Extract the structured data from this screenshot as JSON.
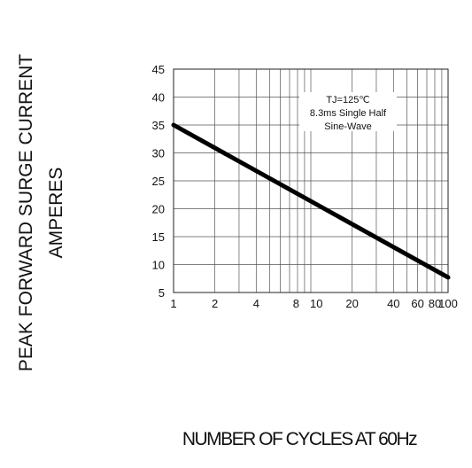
{
  "chart_data": {
    "type": "line",
    "title": "",
    "ylabel_line1": "PEAK FORWARD SURGE CURRENT",
    "ylabel_line2": "AMPERES",
    "xlabel": "NUMBER OF CYCLES AT 60Hz",
    "xscale": "log",
    "xlim": [
      1,
      100
    ],
    "ylim": [
      5,
      45
    ],
    "x_tick_labels": [
      "1",
      "2",
      "4",
      "8",
      "10",
      "20",
      "40",
      "60",
      "80",
      "100"
    ],
    "x_ticks": [
      1,
      2,
      4,
      8,
      10,
      20,
      40,
      60,
      80,
      100
    ],
    "y_ticks": [
      5,
      10,
      15,
      20,
      25,
      30,
      35,
      40,
      45
    ],
    "y_tick_labels": [
      "5",
      "10",
      "15",
      "20",
      "25",
      "30",
      "35",
      "40",
      "45"
    ],
    "grid": true,
    "annotation_lines": [
      "TJ=125℃",
      "8.3ms Single Half",
      "Sine-Wave"
    ],
    "series": [
      {
        "x": [
          1,
          100
        ],
        "y": [
          35,
          7.7
        ]
      }
    ],
    "line_color": "#000000"
  }
}
